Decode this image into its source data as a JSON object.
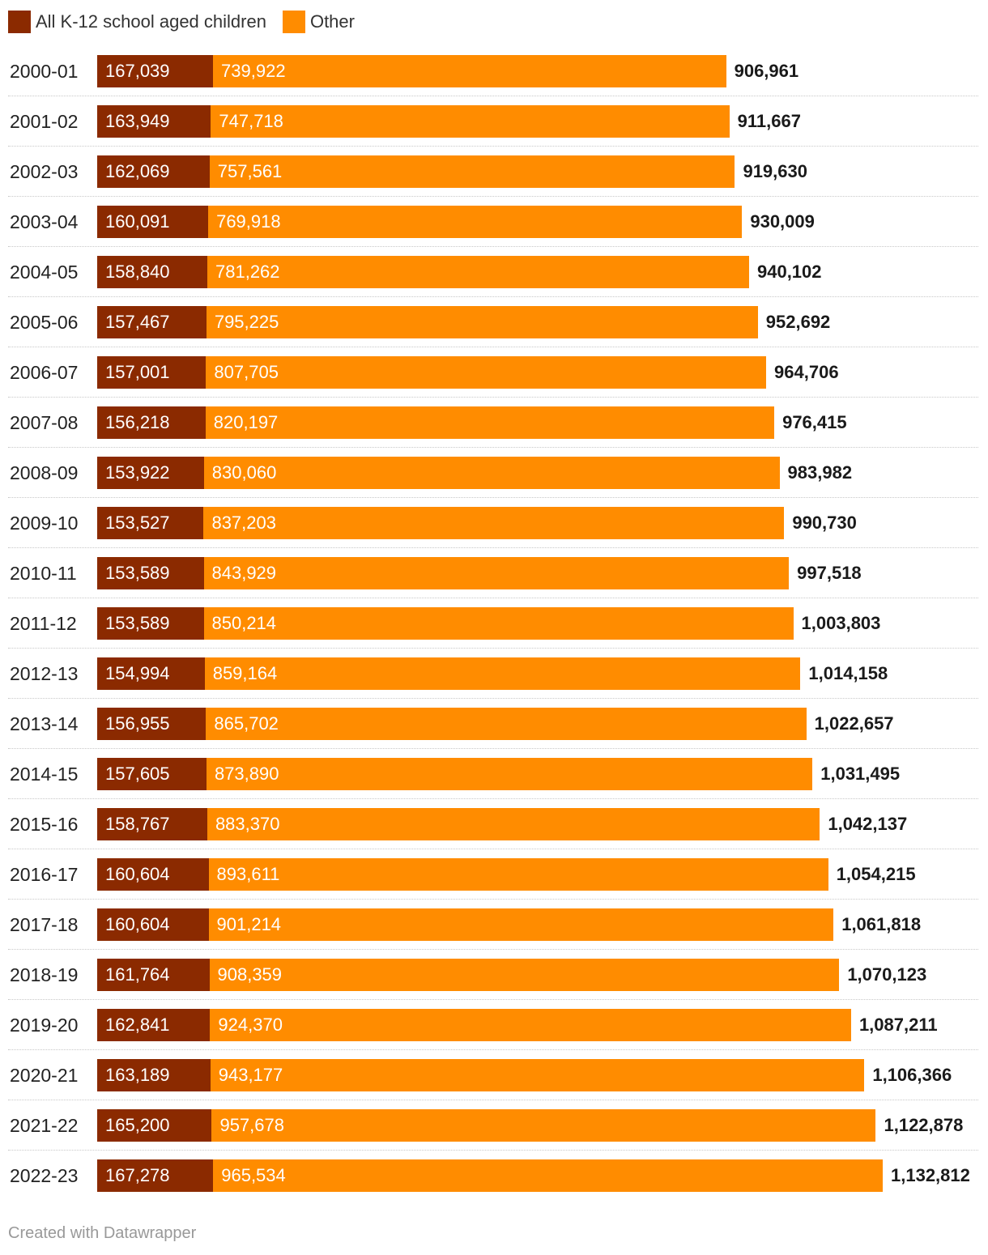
{
  "legend": [
    {
      "label": "All K-12 school aged children",
      "color": "#8b2a00"
    },
    {
      "label": "Other",
      "color": "#ff8c00"
    }
  ],
  "footer": "Created with Datawrapper",
  "chart_data": {
    "type": "bar",
    "orientation": "horizontal",
    "stacked": true,
    "categories": [
      "2000-01",
      "2001-02",
      "2002-03",
      "2003-04",
      "2004-05",
      "2005-06",
      "2006-07",
      "2007-08",
      "2008-09",
      "2009-10",
      "2010-11",
      "2011-12",
      "2012-13",
      "2013-14",
      "2014-15",
      "2015-16",
      "2016-17",
      "2017-18",
      "2018-19",
      "2019-20",
      "2020-21",
      "2021-22",
      "2022-23"
    ],
    "series": [
      {
        "name": "All K-12 school aged children",
        "color": "#8b2a00",
        "values": [
          167039,
          163949,
          162069,
          160091,
          158840,
          157467,
          157001,
          156218,
          153922,
          153527,
          153589,
          153589,
          154994,
          156955,
          157605,
          158767,
          160604,
          160604,
          161764,
          162841,
          163189,
          165200,
          167278
        ],
        "labels": [
          "167,039",
          "163,949",
          "162,069",
          "160,091",
          "158,840",
          "157,467",
          "157,001",
          "156,218",
          "153,922",
          "153,527",
          "153,589",
          "153,589",
          "154,994",
          "156,955",
          "157,605",
          "158,767",
          "160,604",
          "160,604",
          "161,764",
          "162,841",
          "163,189",
          "165,200",
          "167,278"
        ]
      },
      {
        "name": "Other",
        "color": "#ff8c00",
        "values": [
          739922,
          747718,
          757561,
          769918,
          781262,
          795225,
          807705,
          820197,
          830060,
          837203,
          843929,
          850214,
          859164,
          865702,
          873890,
          883370,
          893611,
          901214,
          908359,
          924370,
          943177,
          957678,
          965534
        ],
        "labels": [
          "739,922",
          "747,718",
          "757,561",
          "769,918",
          "781,262",
          "795,225",
          "807,705",
          "820,197",
          "830,060",
          "837,203",
          "843,929",
          "850,214",
          "859,164",
          "865,702",
          "873,890",
          "883,370",
          "893,611",
          "901,214",
          "908,359",
          "924,370",
          "943,177",
          "957,678",
          "965,534"
        ]
      }
    ],
    "totals": [
      906961,
      911667,
      919630,
      930009,
      940102,
      952692,
      964706,
      976415,
      983982,
      990730,
      997518,
      1003803,
      1014158,
      1022657,
      1031495,
      1042137,
      1054215,
      1061818,
      1070123,
      1087211,
      1106366,
      1122878,
      1132812
    ],
    "total_labels": [
      "906,961",
      "911,667",
      "919,630",
      "930,009",
      "940,102",
      "952,692",
      "964,706",
      "976,415",
      "983,982",
      "990,730",
      "997,518",
      "1,003,803",
      "1,014,158",
      "1,022,657",
      "1,031,495",
      "1,042,137",
      "1,054,215",
      "1,061,818",
      "1,070,123",
      "1,087,211",
      "1,106,366",
      "1,122,878",
      "1,132,812"
    ],
    "xlim": [
      0,
      1132812
    ],
    "grid": false,
    "legend_position": "top-left"
  }
}
